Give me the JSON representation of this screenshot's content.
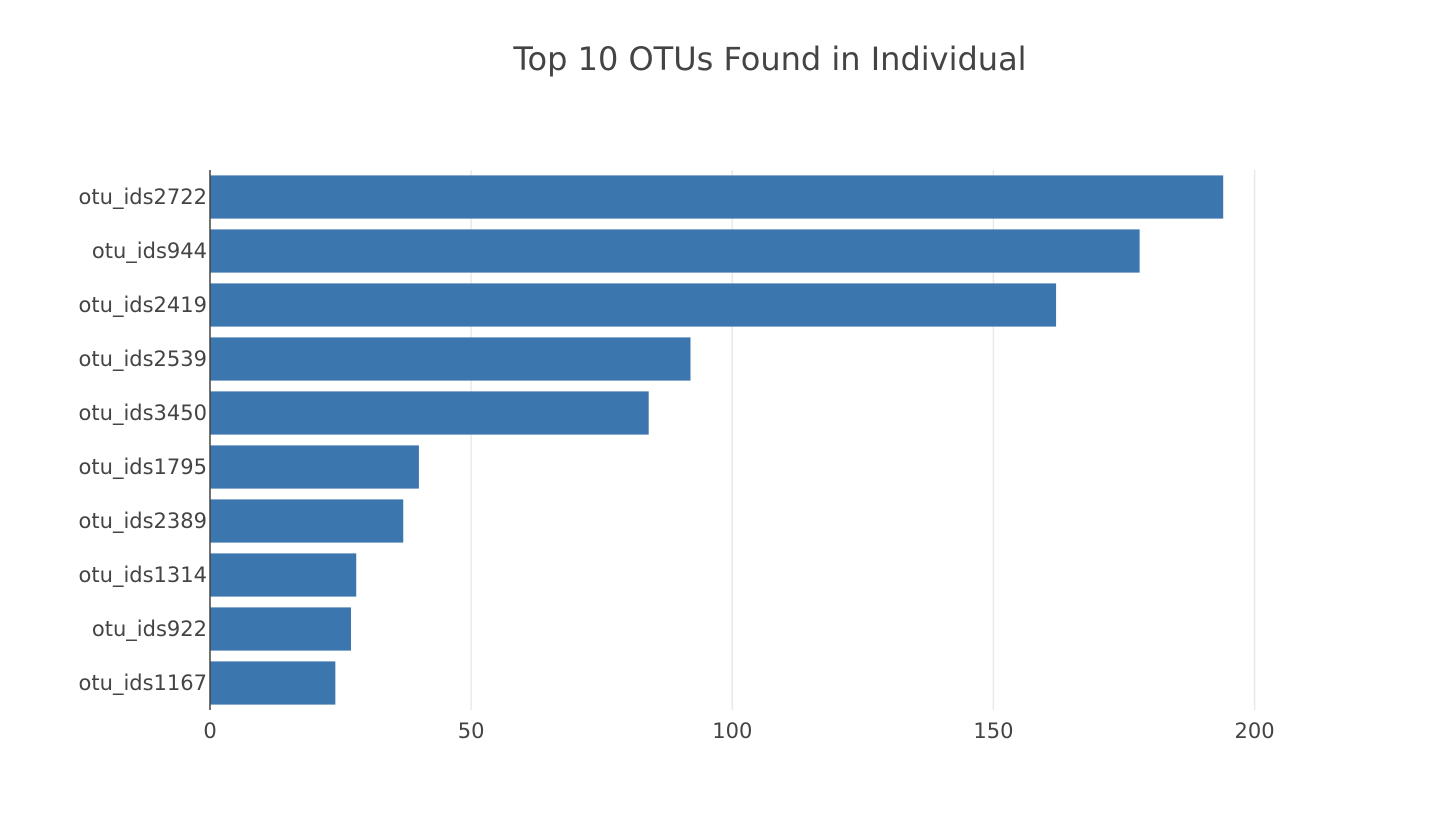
{
  "chart_data": {
    "type": "bar",
    "orientation": "horizontal",
    "title": "Top 10 OTUs Found in Individual",
    "xlabel": "",
    "ylabel": "",
    "categories": [
      "otu_ids2722",
      "otu_ids944",
      "otu_ids2419",
      "otu_ids2539",
      "otu_ids3450",
      "otu_ids1795",
      "otu_ids2389",
      "otu_ids1314",
      "otu_ids922",
      "otu_ids1167"
    ],
    "values": [
      194,
      178,
      162,
      92,
      84,
      40,
      37,
      28,
      27,
      24
    ],
    "xlim": [
      0,
      220
    ],
    "x_ticks": [
      0,
      50,
      100,
      150,
      200
    ],
    "x_tick_labels": [
      "0",
      "50",
      "100",
      "150",
      "200"
    ],
    "bar_color": "#3b76af",
    "grid": "vertical",
    "legend": "none"
  }
}
